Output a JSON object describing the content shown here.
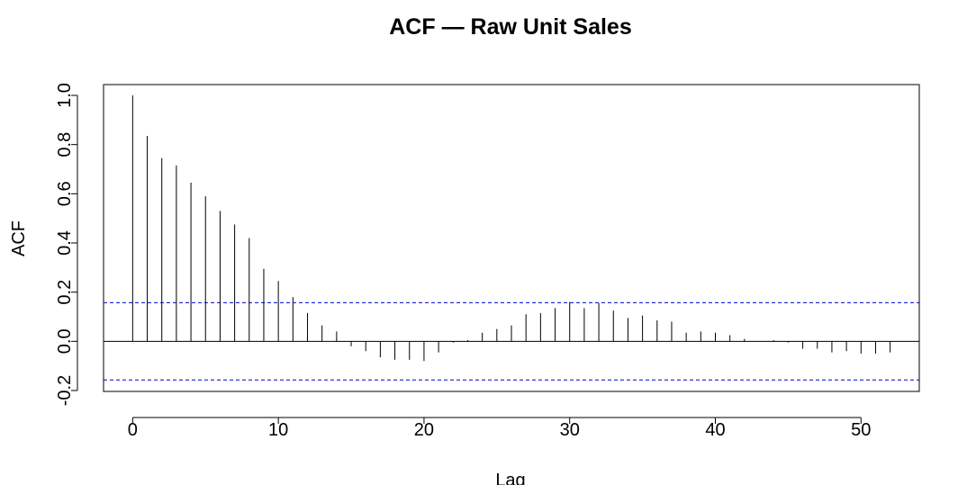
{
  "chart_data": {
    "type": "bar",
    "title": "ACF — Raw Unit Sales",
    "xlabel": "Lag",
    "ylabel": "ACF",
    "xlim": [
      -2,
      54
    ],
    "ylim": [
      -0.2,
      1.0
    ],
    "x_ticks": [
      0,
      10,
      20,
      30,
      40,
      50
    ],
    "x_tick_labels": [
      "0",
      "10",
      "20",
      "30",
      "40",
      "50"
    ],
    "y_ticks": [
      -0.2,
      0.0,
      0.2,
      0.4,
      0.6,
      0.8,
      1.0
    ],
    "y_tick_labels": [
      "-0.2",
      "0.0",
      "0.2",
      "0.4",
      "0.6",
      "0.8",
      "1.0"
    ],
    "confidence_bound": 0.157,
    "zero_line": true,
    "grid": false,
    "series": [
      {
        "lags": [
          0,
          1,
          2,
          3,
          4,
          5,
          6,
          7,
          8,
          9,
          10,
          11,
          12,
          13,
          14,
          15,
          16,
          17,
          18,
          19,
          20,
          21,
          22,
          23,
          24,
          25,
          26,
          27,
          28,
          29,
          30,
          31,
          32,
          33,
          34,
          35,
          36,
          37,
          38,
          39,
          40,
          41,
          42,
          43,
          44,
          45,
          46,
          47,
          48,
          49,
          50,
          51,
          52
        ],
        "values": [
          1.0,
          0.835,
          0.745,
          0.715,
          0.645,
          0.59,
          0.53,
          0.475,
          0.42,
          0.295,
          0.245,
          0.18,
          0.115,
          0.065,
          0.04,
          -0.02,
          -0.04,
          -0.065,
          -0.075,
          -0.075,
          -0.08,
          -0.045,
          -0.005,
          0.005,
          0.035,
          0.05,
          0.065,
          0.11,
          0.115,
          0.135,
          0.16,
          0.135,
          0.155,
          0.125,
          0.095,
          0.105,
          0.085,
          0.08,
          0.035,
          0.04,
          0.035,
          0.025,
          0.01,
          0.0,
          0.005,
          -0.005,
          -0.03,
          -0.03,
          -0.045,
          -0.04,
          -0.05,
          -0.05,
          -0.045
        ]
      }
    ],
    "colors": {
      "spikes": "#000000",
      "bounds": "#0000cc",
      "frame": "#000000"
    }
  }
}
